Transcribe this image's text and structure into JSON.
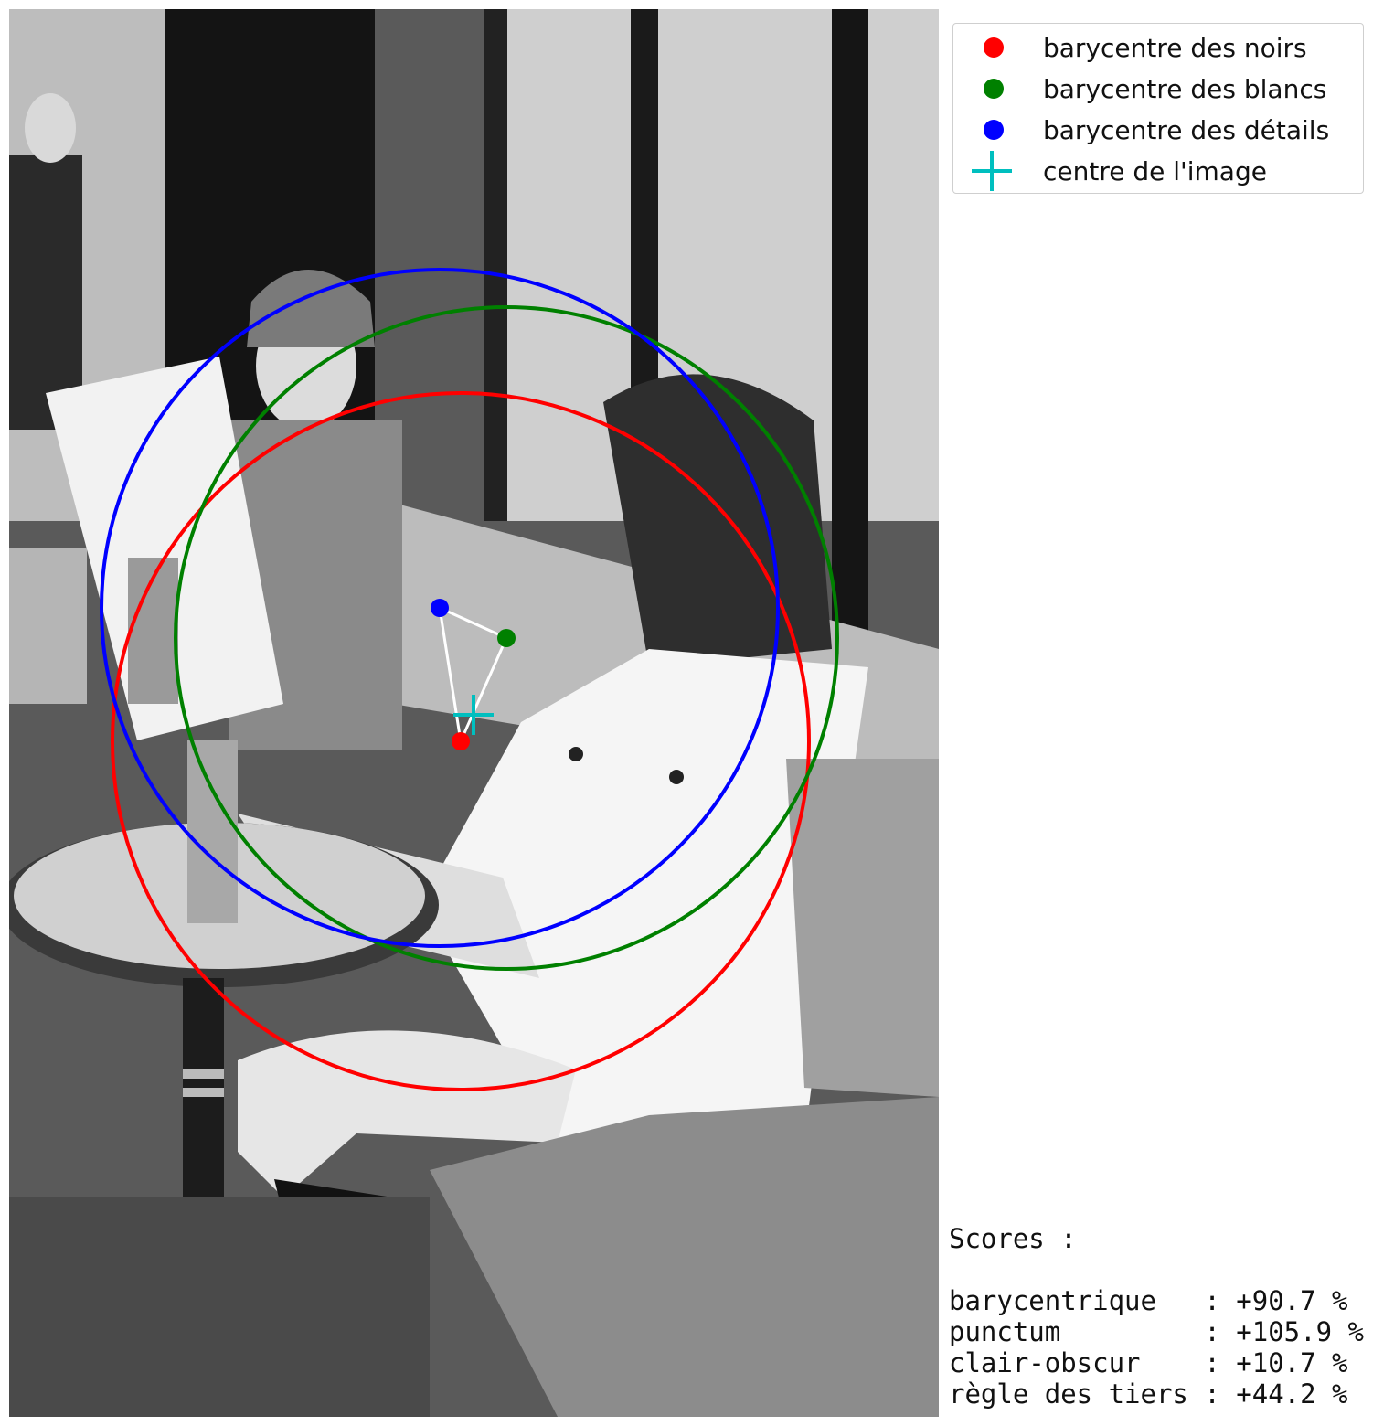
{
  "legend": {
    "items": [
      {
        "label": "barycentre des noirs",
        "color": "#ff0000",
        "marker": "dot"
      },
      {
        "label": "barycentre des blancs",
        "color": "#008000",
        "marker": "dot"
      },
      {
        "label": "barycentre des détails",
        "color": "#0000ff",
        "marker": "dot"
      },
      {
        "label": "centre de l'image",
        "color": "#00bfbf",
        "marker": "plus"
      }
    ]
  },
  "scores": {
    "title": "Scores :",
    "rows": [
      {
        "name": "barycentrique   ",
        "value": ": +90.7 %"
      },
      {
        "name": "punctum         ",
        "value": ": +105.9 %"
      },
      {
        "name": "clair-obscur    ",
        "value": ": +10.7 %"
      },
      {
        "name": "règle des tiers ",
        "value": ": +44.2 %"
      }
    ]
  },
  "colors": {
    "noirs": "#ff0000",
    "blancs": "#008000",
    "details": "#0000ff",
    "centre": "#00bfbf",
    "connector": "#ffffff"
  }
}
